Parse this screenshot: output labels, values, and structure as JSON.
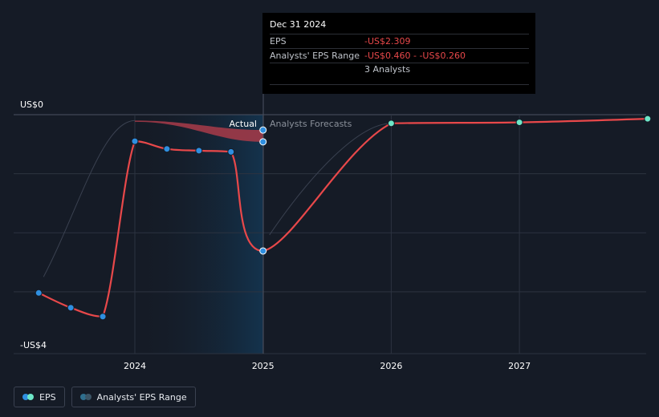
{
  "chart_data": {
    "type": "line",
    "y_axis": {
      "top_label": "US$0",
      "bottom_label": "-US$4",
      "ylim": [
        -4,
        0
      ]
    },
    "x_axis": {
      "ticks": [
        "2024",
        "2025",
        "2026",
        "2027"
      ],
      "xlim": [
        2023.2,
        2028.0
      ]
    },
    "region_labels": {
      "actual": "Actual",
      "forecast": "Analysts Forecasts"
    },
    "series": [
      {
        "name": "EPS",
        "actual_points": [
          {
            "x": 2023.25,
            "y": -3.02
          },
          {
            "x": 2023.5,
            "y": -3.27
          },
          {
            "x": 2023.75,
            "y": -3.42
          },
          {
            "x": 2024.0,
            "y": -0.45
          },
          {
            "x": 2024.25,
            "y": -0.58
          },
          {
            "x": 2024.5,
            "y": -0.61
          },
          {
            "x": 2024.75,
            "y": -0.63
          },
          {
            "x": 2025.0,
            "y": -2.309
          }
        ],
        "forecast_points": [
          {
            "x": 2026.0,
            "y": -0.147
          },
          {
            "x": 2027.0,
            "y": -0.13
          },
          {
            "x": 2028.0,
            "y": -0.07
          }
        ]
      },
      {
        "name": "Analysts' EPS Range",
        "range_band": [
          {
            "x": 2024.0,
            "low": -0.12,
            "high": -0.1
          },
          {
            "x": 2025.0,
            "low": -0.46,
            "high": -0.26
          }
        ]
      }
    ],
    "tooltip": {
      "date": "Dec 31 2024",
      "rows": [
        {
          "key": "EPS",
          "value": "-US$2.309"
        },
        {
          "key": "Analysts' EPS Range",
          "value": "-US$0.460 - -US$0.260"
        }
      ],
      "analysts": "3 Analysts"
    },
    "legend": [
      {
        "label": "EPS"
      },
      {
        "label": "Analysts' EPS Range"
      }
    ],
    "colors": {
      "eps_line": "#e8484a",
      "actual_point": "#2f8fe0",
      "forecast_point": "#6ee7c8",
      "range_fill": "#a03a48",
      "actual_region": "#13324d",
      "background": "#151b26",
      "grid": "#2c3340"
    }
  }
}
